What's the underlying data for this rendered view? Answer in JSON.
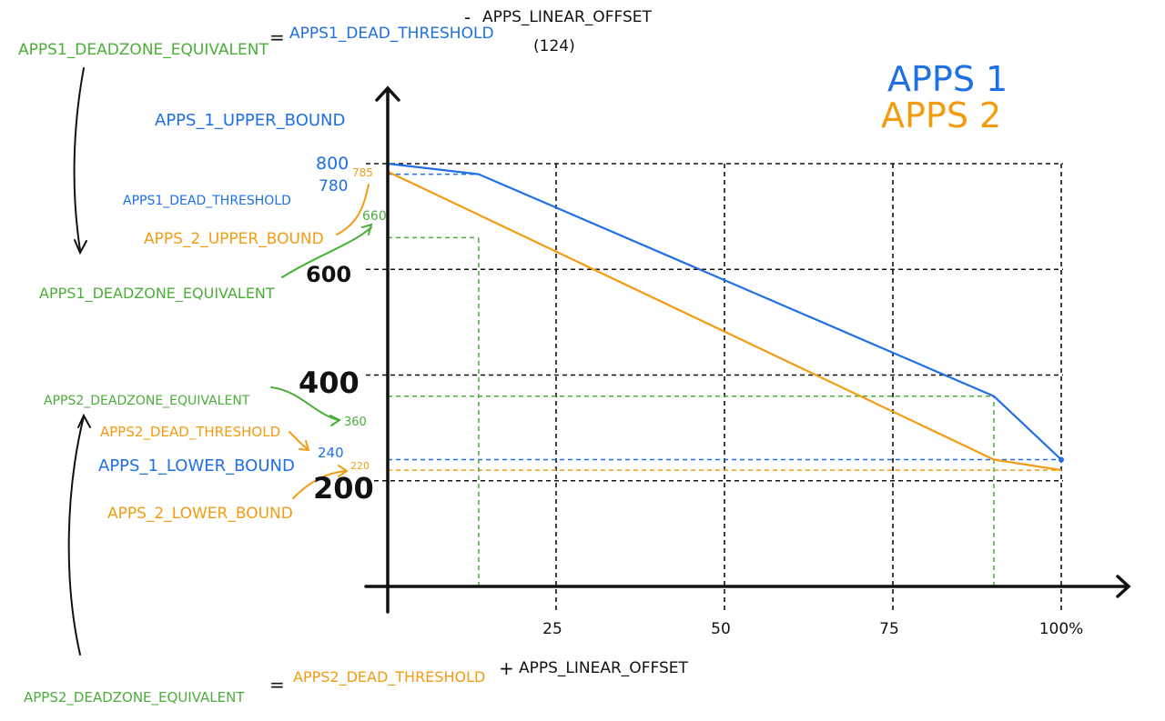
{
  "colors": {
    "apps1": "#1f6fe5",
    "apps2": "#f39c12",
    "equivalent": "#4cae3a",
    "axis": "#111111",
    "grid": "#111111"
  },
  "legend": {
    "apps1": "APPS 1",
    "apps2": "APPS 2"
  },
  "formulas": {
    "top": {
      "lhs": "APPS1_DEADZONE_EQUIVALENT",
      "eq": "=",
      "term1": "APPS1_DEAD_THRESHOLD",
      "op": "-",
      "term2": "APPS_LINEAR_OFFSET",
      "note": "(124)"
    },
    "bottom": {
      "lhs": "APPS2_DEADZONE_EQUIVALENT",
      "eq": "=",
      "term1": "APPS2_DEAD_THRESHOLD",
      "op": "+",
      "term2": "APPS_LINEAR_OFFSET"
    }
  },
  "annotations": {
    "apps1_upper_bound": "APPS_1_UPPER_BOUND",
    "apps1_dead_threshold": "APPS1_DEAD_THRESHOLD",
    "apps2_upper_bound": "APPS_2_UPPER_BOUND",
    "apps1_deadzone_equivalent": "APPS1_DEADZONE_EQUIVALENT",
    "apps2_deadzone_equivalent": "APPS2_DEADZONE_EQUIVALENT",
    "apps2_dead_threshold": "APPS2_DEAD_THRESHOLD",
    "apps1_lower_bound": "APPS_1_LOWER_BOUND",
    "apps2_lower_bound": "APPS_2_LOWER_BOUND"
  },
  "value_labels": {
    "v800": "800",
    "v780": "780",
    "v785": "785",
    "v660": "660",
    "v360": "360",
    "v240": "240",
    "v220": "220"
  },
  "chart_data": {
    "type": "line",
    "xlim": [
      0,
      100
    ],
    "ylim": [
      0,
      1000
    ],
    "x_ticks": [
      {
        "value": 25,
        "label": "25"
      },
      {
        "value": 50,
        "label": "50"
      },
      {
        "value": 75,
        "label": "75"
      },
      {
        "value": 100,
        "label": "100%"
      }
    ],
    "y_ticks": [
      {
        "value": 600,
        "label": "600"
      },
      {
        "value": 400,
        "label": "400"
      },
      {
        "value": 200,
        "label": "200"
      }
    ],
    "y_gridlines": [
      800,
      600,
      400,
      200
    ],
    "x_gridlines": [
      25,
      50,
      75,
      100
    ],
    "series": [
      {
        "name": "APPS 1",
        "color": "#1f6fe5",
        "points": [
          [
            0,
            800
          ],
          [
            13.5,
            780
          ],
          [
            90,
            360
          ],
          [
            100,
            240
          ]
        ]
      },
      {
        "name": "APPS 2",
        "color": "#f39c12",
        "points": [
          [
            0,
            785
          ],
          [
            90,
            240
          ],
          [
            100,
            220
          ]
        ]
      }
    ],
    "reference_lines": [
      {
        "kind": "h",
        "y": 780,
        "x_from": 0,
        "x_to": 13.5,
        "color": "#1f6fe5"
      },
      {
        "kind": "h",
        "y": 240,
        "x_from": 0,
        "x_to": 100,
        "color": "#1f6fe5"
      },
      {
        "kind": "h",
        "y": 220,
        "x_from": 0,
        "x_to": 100,
        "color": "#f39c12"
      },
      {
        "kind": "h",
        "y": 660,
        "x_from": 0,
        "x_to": 13.5,
        "color": "#4cae3a"
      },
      {
        "kind": "h",
        "y": 360,
        "x_from": 0,
        "x_to": 90,
        "color": "#4cae3a"
      },
      {
        "kind": "v",
        "x": 13.5,
        "y_from": 0,
        "y_to": 660,
        "color": "#4cae3a"
      },
      {
        "kind": "v",
        "x": 90,
        "y_from": 0,
        "y_to": 360,
        "color": "#4cae3a"
      }
    ]
  }
}
